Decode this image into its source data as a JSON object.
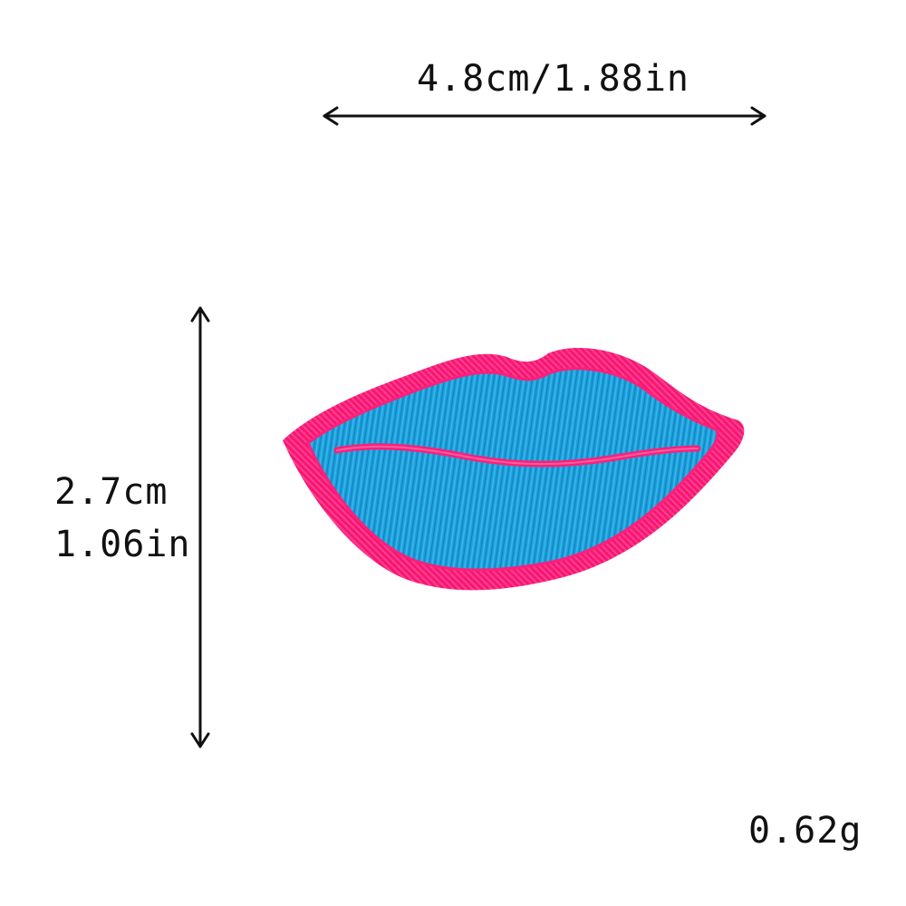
{
  "dimensions": {
    "width_label": "4.8cm/1.88in",
    "height_cm_label": "2.7cm",
    "height_in_label": "1.06in",
    "weight_label": "0.62g"
  },
  "product": {
    "type": "embroidered lips patch",
    "colors": {
      "border": "#ff1f7a",
      "fill": "#1b9ed8",
      "fill_highlight": "#38b8ee",
      "thread_shadow": "#0f6fb0"
    }
  },
  "arrow_color": "#111111",
  "icons": [
    "double-arrow-horizontal-icon",
    "double-arrow-vertical-icon"
  ]
}
